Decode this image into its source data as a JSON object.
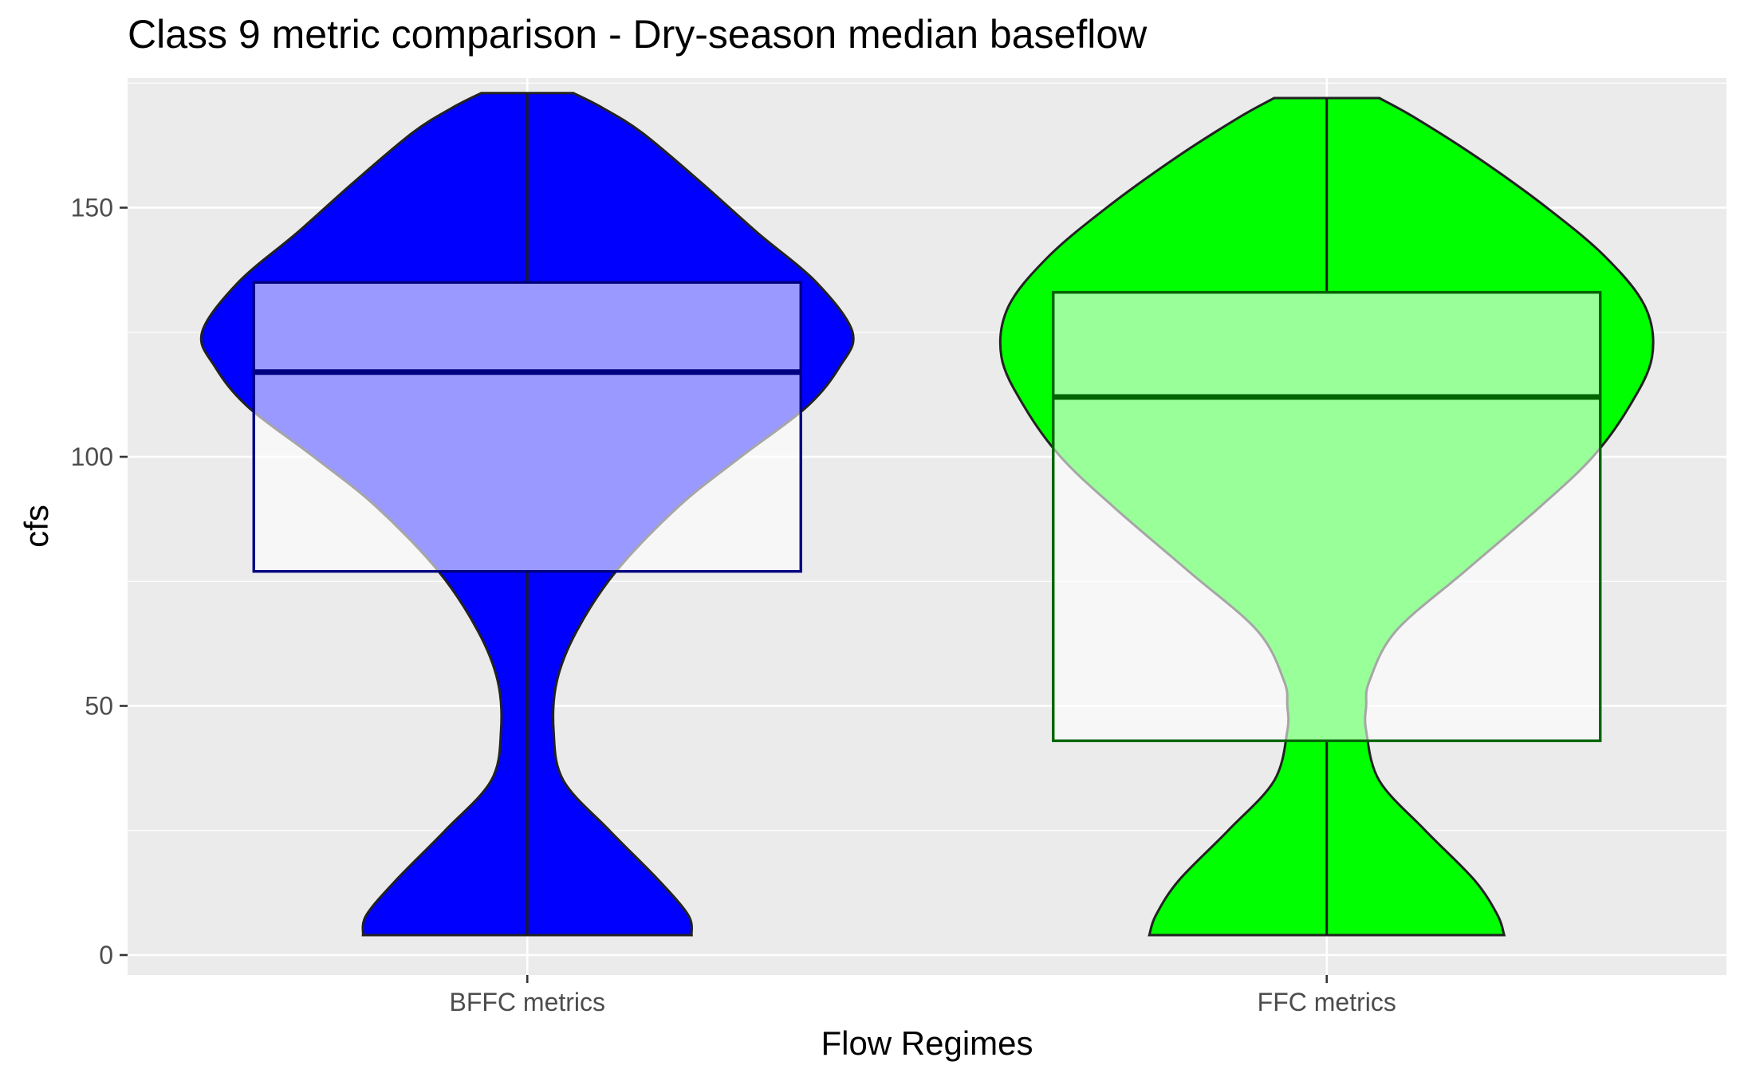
{
  "chart_data": {
    "type": "violin",
    "title": "Class 9 metric comparison - Dry-season median baseflow",
    "xlabel": "Flow Regimes",
    "ylabel": "cfs",
    "categories": [
      "BFFC metrics",
      "FFC metrics"
    ],
    "ylim": [
      -4,
      176
    ],
    "yticks": [
      0,
      50,
      100,
      150
    ],
    "grid": true,
    "legend": "none",
    "series": [
      {
        "category": "BFFC metrics",
        "fill_color": "#0000ff",
        "box_color": "#000080",
        "min": 4,
        "q1": 77,
        "median": 117,
        "q3": 135,
        "max": 173,
        "density_profile": [
          [
            4,
            0.5
          ],
          [
            8,
            0.49
          ],
          [
            15,
            0.4
          ],
          [
            25,
            0.25
          ],
          [
            35,
            0.11
          ],
          [
            45,
            0.08
          ],
          [
            55,
            0.09
          ],
          [
            65,
            0.15
          ],
          [
            77,
            0.27
          ],
          [
            90,
            0.46
          ],
          [
            100,
            0.65
          ],
          [
            110,
            0.85
          ],
          [
            118,
            0.95
          ],
          [
            125,
            0.99
          ],
          [
            135,
            0.88
          ],
          [
            145,
            0.7
          ],
          [
            155,
            0.53
          ],
          [
            165,
            0.35
          ],
          [
            170,
            0.23
          ],
          [
            173,
            0.14
          ]
        ]
      },
      {
        "category": "FFC metrics",
        "fill_color": "#00ff00",
        "box_color": "#006400",
        "min": 4,
        "q1": 43,
        "median": 112,
        "q3": 133,
        "max": 172,
        "density_profile": [
          [
            4,
            0.54
          ],
          [
            8,
            0.52
          ],
          [
            15,
            0.45
          ],
          [
            25,
            0.3
          ],
          [
            35,
            0.16
          ],
          [
            45,
            0.12
          ],
          [
            50,
            0.12
          ],
          [
            55,
            0.13
          ],
          [
            65,
            0.21
          ],
          [
            77,
            0.42
          ],
          [
            90,
            0.65
          ],
          [
            100,
            0.81
          ],
          [
            110,
            0.92
          ],
          [
            120,
            0.99
          ],
          [
            130,
            0.97
          ],
          [
            140,
            0.85
          ],
          [
            150,
            0.67
          ],
          [
            160,
            0.46
          ],
          [
            168,
            0.27
          ],
          [
            172,
            0.16
          ]
        ]
      }
    ]
  }
}
